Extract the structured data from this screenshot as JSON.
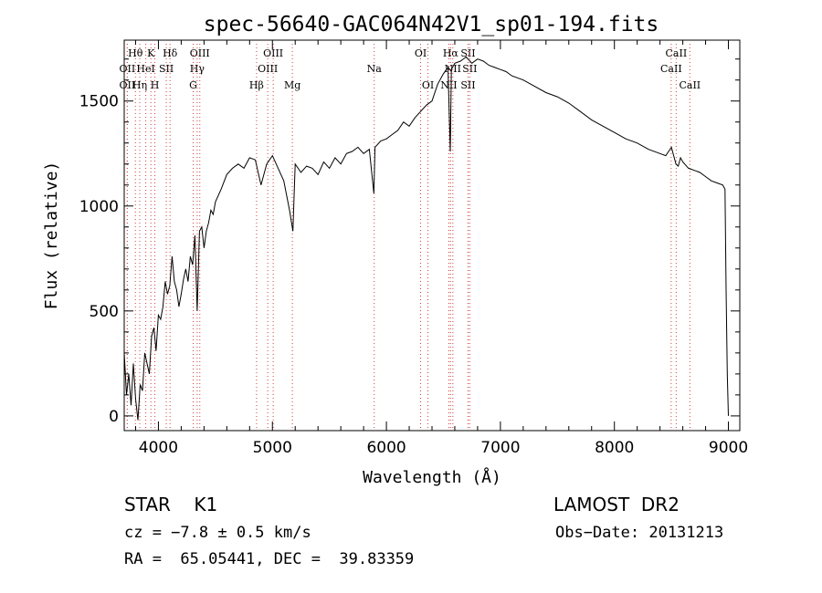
{
  "chart_data": {
    "type": "line",
    "title": "spec-56640-GAC064N42V1_sp01-194.fits",
    "xlabel": "Wavelength (Å)",
    "ylabel": "Flux (relative)",
    "xlim": [
      3700,
      9100
    ],
    "ylim": [
      -70,
      1790
    ],
    "xticks": [
      4000,
      5000,
      6000,
      7000,
      8000,
      9000
    ],
    "yticks": [
      0,
      500,
      1000,
      1500
    ],
    "grid": false,
    "series": [
      {
        "x": [
          3700,
          3720,
          3740,
          3760,
          3780,
          3800,
          3820,
          3840,
          3860,
          3880,
          3900,
          3920,
          3940,
          3960,
          3980,
          4000,
          4020,
          4040,
          4060,
          4080,
          4100,
          4120,
          4140,
          4160,
          4180,
          4200,
          4220,
          4240,
          4260,
          4280,
          4300,
          4320,
          4340,
          4360,
          4380,
          4400,
          4420,
          4440,
          4460,
          4480,
          4500,
          4550,
          4600,
          4650,
          4700,
          4750,
          4800,
          4850,
          4900,
          4950,
          5000,
          5050,
          5100,
          5150,
          5180,
          5200,
          5250,
          5300,
          5350,
          5400,
          5450,
          5500,
          5550,
          5600,
          5650,
          5700,
          5750,
          5800,
          5850,
          5890,
          5900,
          5950,
          6000,
          6050,
          6100,
          6150,
          6200,
          6250,
          6300,
          6350,
          6400,
          6450,
          6500,
          6540,
          6560,
          6570,
          6580,
          6600,
          6650,
          6700,
          6750,
          6800,
          6850,
          6900,
          6950,
          7000,
          7050,
          7100,
          7200,
          7300,
          7400,
          7500,
          7600,
          7700,
          7800,
          7900,
          8000,
          8100,
          8200,
          8300,
          8400,
          8450,
          8500,
          8540,
          8560,
          8580,
          8600,
          8650,
          8700,
          8750,
          8800,
          8850,
          8900,
          8950,
          8970,
          8980,
          8990,
          9000
        ],
        "y": [
          300,
          100,
          200,
          50,
          250,
          80,
          -20,
          150,
          120,
          300,
          250,
          200,
          380,
          420,
          310,
          480,
          460,
          520,
          640,
          580,
          620,
          760,
          640,
          600,
          520,
          580,
          650,
          700,
          640,
          760,
          720,
          860,
          500,
          880,
          900,
          800,
          880,
          920,
          980,
          960,
          1020,
          1080,
          1150,
          1180,
          1200,
          1180,
          1230,
          1220,
          1100,
          1200,
          1240,
          1180,
          1120,
          980,
          880,
          1200,
          1160,
          1190,
          1180,
          1150,
          1210,
          1180,
          1230,
          1200,
          1250,
          1260,
          1280,
          1250,
          1270,
          1060,
          1280,
          1310,
          1320,
          1340,
          1360,
          1400,
          1380,
          1420,
          1450,
          1480,
          1500,
          1580,
          1630,
          1660,
          1260,
          1650,
          1660,
          1680,
          1690,
          1710,
          1680,
          1700,
          1690,
          1670,
          1660,
          1650,
          1640,
          1620,
          1600,
          1570,
          1540,
          1520,
          1490,
          1450,
          1410,
          1380,
          1350,
          1320,
          1300,
          1270,
          1250,
          1240,
          1280,
          1200,
          1190,
          1230,
          1210,
          1180,
          1170,
          1160,
          1140,
          1120,
          1110,
          1100,
          1080,
          600,
          200,
          0
        ]
      }
    ],
    "lines": [
      {
        "label": "Hθ",
        "x": 3798,
        "row": 0
      },
      {
        "label": "K",
        "x": 3934,
        "row": 0
      },
      {
        "label": "Hδ",
        "x": 4102,
        "row": 0
      },
      {
        "label": "OII",
        "x": 3727,
        "row": 1
      },
      {
        "label": "HeI",
        "x": 3889,
        "row": 1
      },
      {
        "label": "SII",
        "x": 4069,
        "row": 1
      },
      {
        "label": "OII",
        "x": 3727,
        "row": 2
      },
      {
        "label": "Hη",
        "x": 3836,
        "row": 2
      },
      {
        "label": "H",
        "x": 3969,
        "row": 2
      },
      {
        "label": "OIII",
        "x": 4363,
        "row": 0
      },
      {
        "label": "Hγ",
        "x": 4340,
        "row": 1
      },
      {
        "label": "G",
        "x": 4305,
        "row": 2
      },
      {
        "label": "OIII",
        "x": 5007,
        "row": 0
      },
      {
        "label": "OIII",
        "x": 4959,
        "row": 1
      },
      {
        "label": "Hβ",
        "x": 4861,
        "row": 2
      },
      {
        "label": "Mg",
        "x": 5175,
        "row": 2
      },
      {
        "label": "Na",
        "x": 5893,
        "row": 1
      },
      {
        "label": "OI",
        "x": 6300,
        "row": 0
      },
      {
        "label": "OI",
        "x": 6364,
        "row": 2
      },
      {
        "label": "Hα",
        "x": 6563,
        "row": 0
      },
      {
        "label": "SII",
        "x": 6716,
        "row": 0
      },
      {
        "label": "NII",
        "x": 6583,
        "row": 1
      },
      {
        "label": "SII",
        "x": 6731,
        "row": 1
      },
      {
        "label": "NII",
        "x": 6548,
        "row": 2
      },
      {
        "label": "SII",
        "x": 6716,
        "row": 2
      },
      {
        "label": "CaII",
        "x": 8542,
        "row": 0
      },
      {
        "label": "CaII",
        "x": 8498,
        "row": 1
      },
      {
        "label": "CaII",
        "x": 8662,
        "row": 2
      }
    ]
  },
  "info": {
    "object": "STAR    K1",
    "survey": "LAMOST  DR2",
    "cz": "cz = −7.8 ± 0.5 km/s",
    "obs_date": "Obs−Date: 20131213",
    "radec": "RA =  65.05441, DEC =  39.83359"
  }
}
